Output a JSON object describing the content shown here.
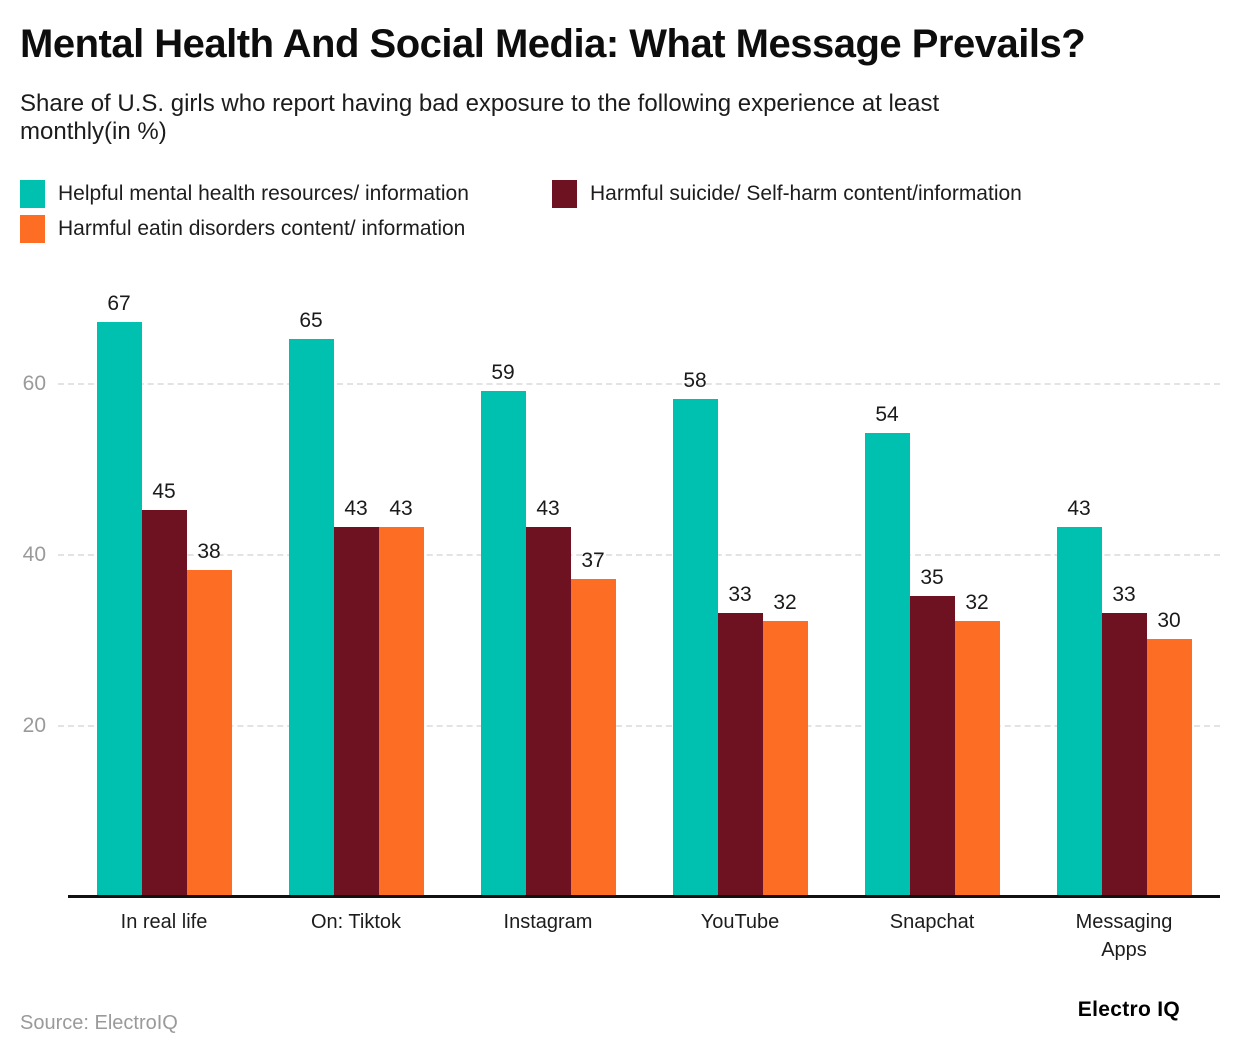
{
  "title": "Mental Health And Social Media: What Message Prevails?",
  "subtitle": "Share of U.S. girls who report having bad exposure to the following experience at least monthly(in %)",
  "source": "Source: ElectroIQ",
  "brand": "Electro IQ",
  "colors": {
    "series_teal": "#00c0b0",
    "series_maroon": "#6e1222",
    "series_orange": "#fd6e24",
    "axis_line": "#111111",
    "gridline": "#e3e3e3",
    "tick_text": "#9a9a9a",
    "label_text": "#1a1a1a"
  },
  "chart_data": {
    "type": "bar",
    "title": "Mental Health And Social Media: What Message Prevails?",
    "subtitle": "Share of U.S. girls who report having bad exposure to the following experience at least monthly(in %)",
    "categories": [
      "In real life",
      "On: Tiktok",
      "Instagram",
      "YouTube",
      "Snapchat",
      "Messaging Apps"
    ],
    "series": [
      {
        "name": "Helpful mental health resources/ information",
        "color": "#00c0b0",
        "values": [
          67,
          65,
          59,
          58,
          54,
          43
        ]
      },
      {
        "name": "Harmful suicide/ Self-harm content/information",
        "color": "#6e1222",
        "values": [
          45,
          43,
          43,
          33,
          35,
          33
        ]
      },
      {
        "name": "Harmful eatin disorders content/ information",
        "color": "#fd6e24",
        "values": [
          38,
          43,
          37,
          32,
          32,
          30
        ]
      }
    ],
    "xlabel": "",
    "ylabel": "",
    "yticks": [
      20,
      40,
      60
    ],
    "ylim": [
      0,
      75
    ],
    "grid": true,
    "grid_style": "dashed-horizontal",
    "legend_position": "top",
    "bar_value_labels": true
  }
}
